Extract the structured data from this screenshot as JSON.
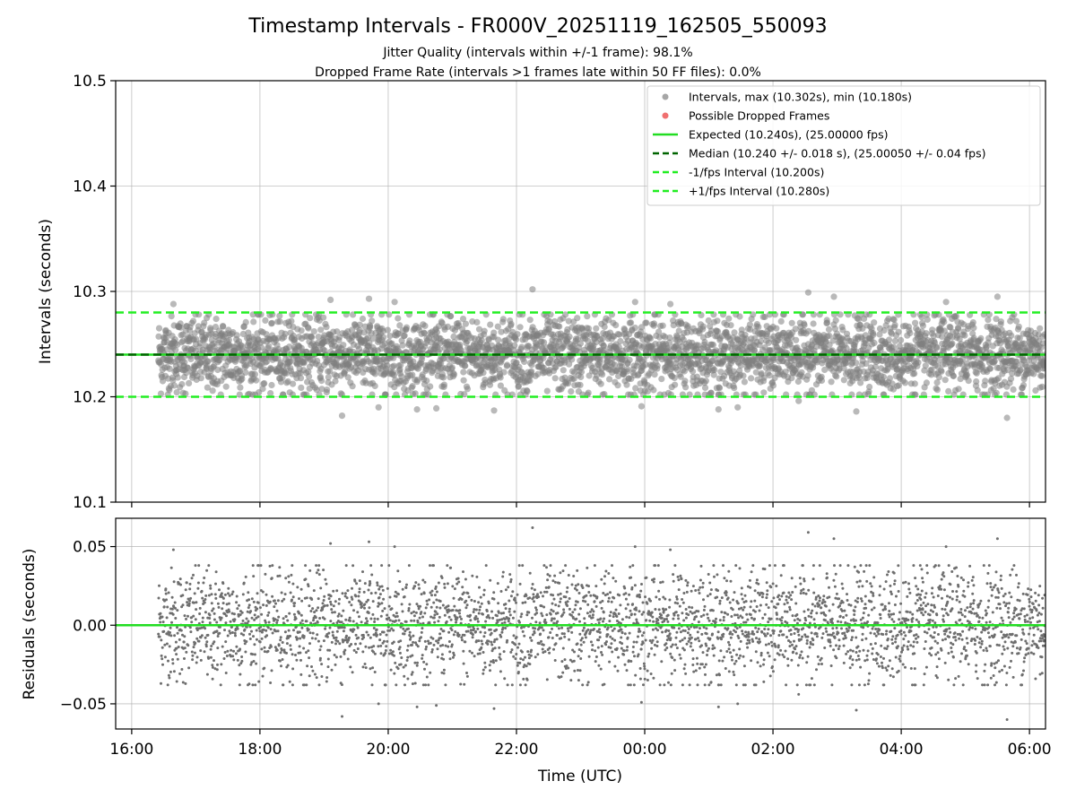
{
  "figure": {
    "title": "Timestamp Intervals - FR000V_20251119_162505_550093",
    "subtitle_1": "Jitter Quality (intervals within +/-1 frame): 98.1%",
    "subtitle_2": "Dropped Frame Rate (intervals >1 frames late within 50 FF files): 0.0%"
  },
  "chart_data": [
    {
      "type": "scatter",
      "panel": "intervals",
      "ylabel": "Intervals (seconds)",
      "ylim": [
        10.1,
        10.5
      ],
      "yticks": [
        10.1,
        10.2,
        10.3,
        10.4,
        10.5
      ],
      "ytick_labels": [
        "10.1",
        "10.2",
        "10.3",
        "10.4",
        "10.5"
      ],
      "xlim_hours": [
        15.75,
        30.25
      ],
      "grid": true,
      "legend_placement": "top-right",
      "series_summary": {
        "x_start_utc": "16:25",
        "x_end_utc": "06:15",
        "center": 10.24,
        "spread_std": 0.018,
        "max": 10.302,
        "min": 10.18
      },
      "outliers": [
        {
          "t": 16.65,
          "v": 10.288
        },
        {
          "t": 19.1,
          "v": 10.292
        },
        {
          "t": 19.28,
          "v": 10.182
        },
        {
          "t": 19.7,
          "v": 10.293
        },
        {
          "t": 19.85,
          "v": 10.19
        },
        {
          "t": 20.1,
          "v": 10.29
        },
        {
          "t": 20.45,
          "v": 10.188
        },
        {
          "t": 20.75,
          "v": 10.189
        },
        {
          "t": 21.65,
          "v": 10.187
        },
        {
          "t": 22.25,
          "v": 10.302
        },
        {
          "t": 23.85,
          "v": 10.29
        },
        {
          "t": 23.95,
          "v": 10.191
        },
        {
          "t": 24.4,
          "v": 10.288
        },
        {
          "t": 25.15,
          "v": 10.188
        },
        {
          "t": 25.45,
          "v": 10.19
        },
        {
          "t": 26.4,
          "v": 10.196
        },
        {
          "t": 26.55,
          "v": 10.299
        },
        {
          "t": 26.95,
          "v": 10.295
        },
        {
          "t": 27.3,
          "v": 10.186
        },
        {
          "t": 28.7,
          "v": 10.29
        },
        {
          "t": 29.5,
          "v": 10.295
        },
        {
          "t": 29.65,
          "v": 10.18
        }
      ],
      "reference_lines": [
        {
          "value": 10.24,
          "style": "solid",
          "color": "#22dd22"
        },
        {
          "value": 10.24,
          "style": "dashed",
          "color": "#006400"
        },
        {
          "value": 10.2,
          "style": "dashed",
          "color": "#22ee22"
        },
        {
          "value": 10.28,
          "style": "dashed",
          "color": "#22ee22"
        }
      ],
      "legend": [
        {
          "label": "Intervals, max (10.302s), min (10.180s)",
          "marker": "dot",
          "color": "#a6a6a6"
        },
        {
          "label": "Possible Dropped Frames",
          "marker": "dot",
          "color": "#f07070"
        },
        {
          "label": "Expected (10.240s), (25.00000 fps)",
          "marker": "solid",
          "color": "#22dd22"
        },
        {
          "label": "Median (10.240 +/- 0.018 s), (25.00050 +/- 0.04 fps)",
          "marker": "dashed",
          "color": "#006400"
        },
        {
          "label": "-1/fps Interval (10.200s)",
          "marker": "dashed",
          "color": "#22ee22"
        },
        {
          "label": "+1/fps Interval (10.280s)",
          "marker": "dashed",
          "color": "#22ee22"
        }
      ]
    },
    {
      "type": "scatter",
      "panel": "residuals",
      "xlabel": "Time (UTC)",
      "ylabel": "Residuals (seconds)",
      "ylim": [
        -0.066,
        0.068
      ],
      "yticks": [
        -0.05,
        0.0,
        0.05
      ],
      "ytick_labels": [
        "−0.05",
        "0.00",
        "0.05"
      ],
      "xticks_hours": [
        16,
        18,
        20,
        22,
        24,
        26,
        28,
        30
      ],
      "xtick_labels": [
        "16:00",
        "18:00",
        "20:00",
        "22:00",
        "00:00",
        "02:00",
        "04:00",
        "06:00"
      ],
      "xlim_hours": [
        15.75,
        30.25
      ],
      "grid": true,
      "zero_line_color": "#22dd22",
      "series_summary": {
        "spread_std": 0.018,
        "max": 0.063,
        "min": -0.06
      }
    }
  ],
  "colors": {
    "points": "#808080",
    "expected": "#22dd22",
    "median": "#006400",
    "bounds": "#22ee22",
    "dropped": "#f07070"
  }
}
